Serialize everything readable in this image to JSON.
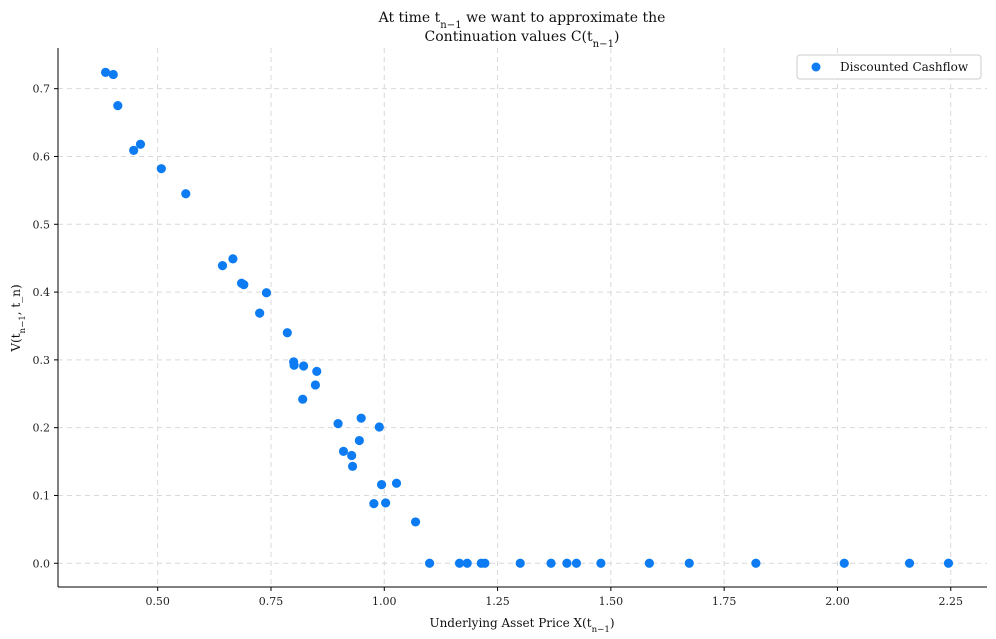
{
  "chart_data": {
    "type": "scatter",
    "title_line1": "At time t_{n−1} we want to approximate the",
    "title_line2": "Continuation values C(t_{n−1})",
    "xlabel": "Underlying Asset Price X(t_{n−1})",
    "ylabel": "V(t_{n−1}, t_n)",
    "xlim": [
      0.28,
      2.33
    ],
    "ylim": [
      -0.035,
      0.76
    ],
    "x_ticks": [
      0.5,
      0.75,
      1.0,
      1.25,
      1.5,
      1.75,
      2.0,
      2.25
    ],
    "x_tick_labels": [
      "0.50",
      "0.75",
      "1.00",
      "1.25",
      "1.50",
      "1.75",
      "2.00",
      "2.25"
    ],
    "y_ticks": [
      0.0,
      0.1,
      0.2,
      0.3,
      0.4,
      0.5,
      0.6,
      0.7
    ],
    "y_tick_labels": [
      "0.0",
      "0.1",
      "0.2",
      "0.3",
      "0.4",
      "0.5",
      "0.6",
      "0.7"
    ],
    "grid": true,
    "legend_position": "top-right",
    "series": [
      {
        "name": "Discounted Cashflow",
        "color": "#0d7cf2",
        "points": [
          [
            0.385,
            0.724
          ],
          [
            0.402,
            0.721
          ],
          [
            0.412,
            0.675
          ],
          [
            0.447,
            0.609
          ],
          [
            0.462,
            0.618
          ],
          [
            0.508,
            0.582
          ],
          [
            0.562,
            0.545
          ],
          [
            0.643,
            0.439
          ],
          [
            0.666,
            0.449
          ],
          [
            0.685,
            0.413
          ],
          [
            0.69,
            0.411
          ],
          [
            0.725,
            0.369
          ],
          [
            0.74,
            0.399
          ],
          [
            0.786,
            0.34
          ],
          [
            0.8,
            0.297
          ],
          [
            0.801,
            0.292
          ],
          [
            0.82,
            0.242
          ],
          [
            0.822,
            0.291
          ],
          [
            0.848,
            0.263
          ],
          [
            0.851,
            0.283
          ],
          [
            0.898,
            0.206
          ],
          [
            0.91,
            0.165
          ],
          [
            0.928,
            0.159
          ],
          [
            0.93,
            0.143
          ],
          [
            0.945,
            0.181
          ],
          [
            0.949,
            0.214
          ],
          [
            0.977,
            0.088
          ],
          [
            0.989,
            0.201
          ],
          [
            0.994,
            0.116
          ],
          [
            1.003,
            0.089
          ],
          [
            1.027,
            0.118
          ],
          [
            1.069,
            0.061
          ],
          [
            1.1,
            0.0
          ],
          [
            1.166,
            0.0
          ],
          [
            1.183,
            0.0
          ],
          [
            1.214,
            0.0
          ],
          [
            1.222,
            0.0
          ],
          [
            1.3,
            0.0
          ],
          [
            1.368,
            0.0
          ],
          [
            1.403,
            0.0
          ],
          [
            1.424,
            0.0
          ],
          [
            1.478,
            0.0
          ],
          [
            1.585,
            0.0
          ],
          [
            1.673,
            0.0
          ],
          [
            1.82,
            0.0
          ],
          [
            2.015,
            0.0
          ],
          [
            2.159,
            0.0
          ],
          [
            2.245,
            0.0
          ]
        ]
      }
    ]
  }
}
